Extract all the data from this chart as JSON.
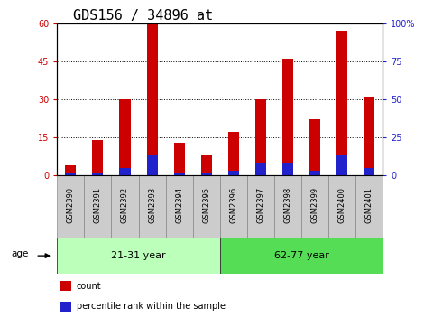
{
  "title": "GDS156 / 34896_at",
  "samples": [
    "GSM2390",
    "GSM2391",
    "GSM2392",
    "GSM2393",
    "GSM2394",
    "GSM2395",
    "GSM2396",
    "GSM2397",
    "GSM2398",
    "GSM2399",
    "GSM2400",
    "GSM2401"
  ],
  "red_values": [
    4,
    14,
    30,
    60,
    13,
    8,
    17,
    30,
    46,
    22,
    57,
    31
  ],
  "blue_values": [
    1,
    2,
    5,
    13,
    2,
    2,
    3,
    8,
    8,
    3,
    13,
    5
  ],
  "left_ylim": [
    0,
    60
  ],
  "right_ylim": [
    0,
    100
  ],
  "left_yticks": [
    0,
    15,
    30,
    45,
    60
  ],
  "right_yticks": [
    0,
    25,
    50,
    75,
    100
  ],
  "left_yticklabels": [
    "0",
    "15",
    "30",
    "45",
    "60"
  ],
  "right_yticklabels": [
    "0",
    "25",
    "50",
    "75",
    "100%"
  ],
  "group1_label": "21-31 year",
  "group2_label": "62-77 year",
  "group1_count": 6,
  "group2_count": 6,
  "age_label": "age",
  "legend_red": "count",
  "legend_blue": "percentile rank within the sample",
  "red_color": "#cc0000",
  "blue_color": "#2222cc",
  "group1_bg": "#bbffbb",
  "group2_bg": "#55dd55",
  "tick_bg": "#cccccc",
  "bar_width": 0.4,
  "title_fontsize": 11,
  "tick_fontsize": 7,
  "label_fontsize": 8
}
